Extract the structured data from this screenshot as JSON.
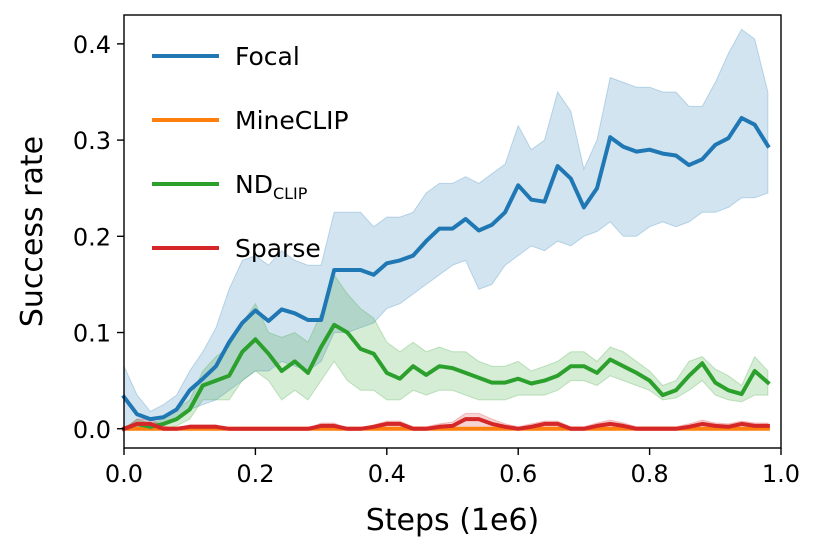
{
  "chart_data": {
    "type": "line",
    "title": "",
    "xlabel": "Steps (1e6)",
    "ylabel": "Success rate",
    "xlim": [
      0.0,
      1.0
    ],
    "ylim": [
      -0.02,
      0.43
    ],
    "xticks": [
      "0.0",
      "0.2",
      "0.4",
      "0.6",
      "0.8",
      "1.0"
    ],
    "yticks": [
      "0.0",
      "0.1",
      "0.2",
      "0.3",
      "0.4"
    ],
    "grid": false,
    "legend_position": "top-left",
    "x": [
      0.0,
      0.02,
      0.04,
      0.06,
      0.08,
      0.1,
      0.12,
      0.14,
      0.16,
      0.18,
      0.2,
      0.22,
      0.24,
      0.26,
      0.28,
      0.3,
      0.32,
      0.34,
      0.36,
      0.38,
      0.4,
      0.42,
      0.44,
      0.46,
      0.48,
      0.5,
      0.52,
      0.54,
      0.56,
      0.58,
      0.6,
      0.62,
      0.64,
      0.66,
      0.68,
      0.7,
      0.72,
      0.74,
      0.76,
      0.78,
      0.8,
      0.82,
      0.84,
      0.86,
      0.88,
      0.9,
      0.92,
      0.94,
      0.96,
      0.98
    ],
    "series": [
      {
        "name": "Focal",
        "color": "#1f77b4",
        "values": [
          0.033,
          0.015,
          0.01,
          0.012,
          0.02,
          0.04,
          0.052,
          0.065,
          0.09,
          0.11,
          0.123,
          0.112,
          0.124,
          0.12,
          0.113,
          0.113,
          0.165,
          0.165,
          0.165,
          0.16,
          0.172,
          0.175,
          0.18,
          0.195,
          0.208,
          0.208,
          0.218,
          0.206,
          0.212,
          0.225,
          0.253,
          0.238,
          0.236,
          0.273,
          0.26,
          0.23,
          0.25,
          0.303,
          0.293,
          0.288,
          0.29,
          0.286,
          0.284,
          0.274,
          0.28,
          0.295,
          0.302,
          0.323,
          0.316,
          0.294
        ],
        "lower": [
          0.0,
          0.0,
          0.005,
          0.005,
          0.01,
          0.02,
          0.025,
          0.03,
          0.04,
          0.05,
          0.06,
          0.06,
          0.07,
          0.065,
          0.06,
          0.07,
          0.1,
          0.1,
          0.105,
          0.11,
          0.125,
          0.13,
          0.14,
          0.15,
          0.16,
          0.17,
          0.175,
          0.145,
          0.15,
          0.17,
          0.18,
          0.19,
          0.185,
          0.195,
          0.19,
          0.2,
          0.205,
          0.215,
          0.2,
          0.2,
          0.21,
          0.215,
          0.21,
          0.215,
          0.225,
          0.225,
          0.23,
          0.24,
          0.24,
          0.245
        ],
        "upper": [
          0.065,
          0.035,
          0.018,
          0.025,
          0.035,
          0.06,
          0.08,
          0.105,
          0.145,
          0.175,
          0.18,
          0.17,
          0.185,
          0.175,
          0.17,
          0.17,
          0.225,
          0.225,
          0.225,
          0.21,
          0.22,
          0.22,
          0.225,
          0.245,
          0.255,
          0.255,
          0.262,
          0.255,
          0.265,
          0.275,
          0.315,
          0.29,
          0.3,
          0.35,
          0.33,
          0.27,
          0.3,
          0.365,
          0.36,
          0.355,
          0.355,
          0.35,
          0.35,
          0.335,
          0.335,
          0.36,
          0.39,
          0.415,
          0.405,
          0.35
        ]
      },
      {
        "name": "MineCLIP",
        "color": "#ff7f0e",
        "values": [
          0.0,
          0.0,
          0.0,
          0.0,
          0.0,
          0.0,
          0.0,
          0.0,
          0.0,
          0.0,
          0.0,
          0.0,
          0.0,
          0.0,
          0.0,
          0.0,
          0.0,
          0.0,
          0.0,
          0.0,
          0.0,
          0.0,
          0.0,
          0.0,
          0.0,
          0.0,
          0.0,
          0.0,
          0.0,
          0.0,
          0.0,
          0.0,
          0.0,
          0.0,
          0.0,
          0.0,
          0.0,
          0.0,
          0.0,
          0.0,
          0.0,
          0.0,
          0.0,
          0.0,
          0.0,
          0.0,
          0.0,
          0.0,
          0.0,
          0.0
        ],
        "lower": [
          0.0,
          0.0,
          0.0,
          0.0,
          0.0,
          0.0,
          0.0,
          0.0,
          0.0,
          0.0,
          0.0,
          0.0,
          0.0,
          0.0,
          0.0,
          0.0,
          0.0,
          0.0,
          0.0,
          0.0,
          0.0,
          0.0,
          0.0,
          0.0,
          0.0,
          0.0,
          0.0,
          0.0,
          0.0,
          0.0,
          0.0,
          0.0,
          0.0,
          0.0,
          0.0,
          0.0,
          0.0,
          0.0,
          0.0,
          0.0,
          0.0,
          0.0,
          0.0,
          0.0,
          0.0,
          0.0,
          0.0,
          0.0,
          0.0,
          0.0
        ],
        "upper": [
          0.0,
          0.0,
          0.0,
          0.0,
          0.0,
          0.0,
          0.0,
          0.0,
          0.0,
          0.0,
          0.0,
          0.0,
          0.0,
          0.0,
          0.0,
          0.0,
          0.0,
          0.0,
          0.0,
          0.0,
          0.0,
          0.0,
          0.0,
          0.0,
          0.0,
          0.0,
          0.0,
          0.0,
          0.0,
          0.0,
          0.0,
          0.0,
          0.0,
          0.0,
          0.0,
          0.0,
          0.0,
          0.0,
          0.0,
          0.0,
          0.0,
          0.0,
          0.0,
          0.0,
          0.0,
          0.0,
          0.0,
          0.0,
          0.0,
          0.0
        ]
      },
      {
        "name": "ND",
        "name_subscript": "CLIP",
        "color": "#2ca02c",
        "values": [
          0.0,
          0.005,
          0.002,
          0.005,
          0.01,
          0.02,
          0.045,
          0.05,
          0.055,
          0.08,
          0.093,
          0.078,
          0.06,
          0.07,
          0.058,
          0.085,
          0.108,
          0.1,
          0.083,
          0.078,
          0.058,
          0.052,
          0.065,
          0.056,
          0.065,
          0.063,
          0.058,
          0.053,
          0.048,
          0.048,
          0.052,
          0.047,
          0.05,
          0.055,
          0.065,
          0.065,
          0.058,
          0.072,
          0.065,
          0.058,
          0.05,
          0.035,
          0.04,
          0.055,
          0.068,
          0.048,
          0.04,
          0.036,
          0.06,
          0.048
        ],
        "lower": [
          0.0,
          0.0,
          0.0,
          0.0,
          0.003,
          0.01,
          0.03,
          0.03,
          0.03,
          0.05,
          0.06,
          0.05,
          0.03,
          0.04,
          0.03,
          0.05,
          0.07,
          0.05,
          0.04,
          0.04,
          0.03,
          0.03,
          0.04,
          0.035,
          0.04,
          0.04,
          0.035,
          0.03,
          0.03,
          0.03,
          0.035,
          0.035,
          0.035,
          0.04,
          0.05,
          0.05,
          0.045,
          0.055,
          0.05,
          0.045,
          0.04,
          0.03,
          0.032,
          0.04,
          0.05,
          0.035,
          0.03,
          0.028,
          0.035,
          0.035
        ],
        "upper": [
          0.0,
          0.01,
          0.005,
          0.01,
          0.02,
          0.03,
          0.06,
          0.075,
          0.085,
          0.11,
          0.13,
          0.1,
          0.095,
          0.1,
          0.09,
          0.12,
          0.16,
          0.14,
          0.125,
          0.115,
          0.09,
          0.08,
          0.09,
          0.08,
          0.085,
          0.08,
          0.08,
          0.07,
          0.065,
          0.065,
          0.07,
          0.06,
          0.065,
          0.07,
          0.08,
          0.08,
          0.07,
          0.085,
          0.08,
          0.07,
          0.06,
          0.045,
          0.05,
          0.07,
          0.075,
          0.062,
          0.055,
          0.045,
          0.075,
          0.06
        ]
      },
      {
        "name": "Sparse",
        "color": "#d62728",
        "values": [
          0.0,
          0.005,
          0.005,
          0.0,
          0.0,
          0.002,
          0.002,
          0.002,
          0.0,
          0.0,
          0.0,
          0.0,
          0.0,
          0.0,
          0.0,
          0.003,
          0.003,
          0.0,
          0.0,
          0.002,
          0.005,
          0.005,
          0.0,
          0.0,
          0.002,
          0.003,
          0.01,
          0.01,
          0.005,
          0.002,
          0.0,
          0.002,
          0.005,
          0.005,
          0.0,
          0.0,
          0.003,
          0.005,
          0.003,
          0.0,
          0.0,
          0.0,
          0.0,
          0.002,
          0.005,
          0.003,
          0.002,
          0.005,
          0.003,
          0.003
        ],
        "lower": [
          0.0,
          0.0,
          0.0,
          0.0,
          0.0,
          0.0,
          0.0,
          0.0,
          0.0,
          0.0,
          0.0,
          0.0,
          0.0,
          0.0,
          0.0,
          0.0,
          0.0,
          0.0,
          0.0,
          0.0,
          0.0,
          0.0,
          0.0,
          0.0,
          0.0,
          0.0,
          0.0,
          0.0,
          0.0,
          0.0,
          0.0,
          0.0,
          0.0,
          0.0,
          0.0,
          0.0,
          0.0,
          0.0,
          0.0,
          0.0,
          0.0,
          0.0,
          0.0,
          0.0,
          0.0,
          0.0,
          0.0,
          0.0,
          0.0,
          0.0
        ],
        "upper": [
          0.0,
          0.01,
          0.01,
          0.003,
          0.0,
          0.004,
          0.004,
          0.004,
          0.0,
          0.0,
          0.0,
          0.0,
          0.0,
          0.0,
          0.0,
          0.006,
          0.006,
          0.0,
          0.0,
          0.004,
          0.008,
          0.008,
          0.002,
          0.002,
          0.005,
          0.007,
          0.016,
          0.016,
          0.01,
          0.005,
          0.002,
          0.005,
          0.008,
          0.008,
          0.002,
          0.002,
          0.006,
          0.009,
          0.006,
          0.002,
          0.002,
          0.002,
          0.002,
          0.005,
          0.009,
          0.006,
          0.005,
          0.008,
          0.006,
          0.006
        ]
      }
    ]
  }
}
